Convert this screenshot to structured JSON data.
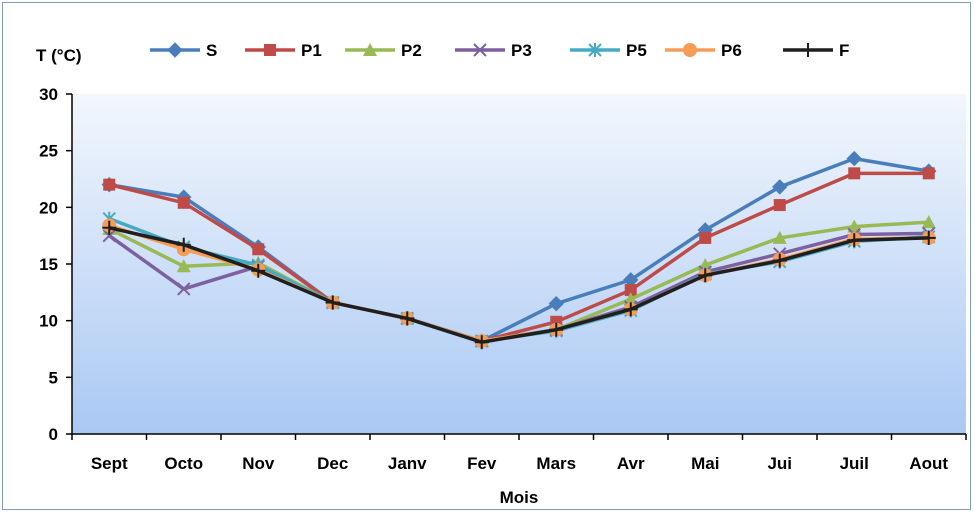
{
  "chart_data": {
    "type": "line",
    "title": "",
    "xlabel": "Mois",
    "ylabel": "T (°C)",
    "ylim": [
      0,
      30
    ],
    "yticks": [
      0,
      5,
      10,
      15,
      20,
      25,
      30
    ],
    "grid": false,
    "legend_position": "top",
    "categories": [
      "Sept",
      "Octo",
      "Nov",
      "Dec",
      "Janv",
      "Fev",
      "Mars",
      "Avr",
      "Mai",
      "Jui",
      "Juil",
      "Aout"
    ],
    "series": [
      {
        "name": "S",
        "color": "#4a7ebb",
        "marker": "diamond",
        "values": [
          22.0,
          20.9,
          16.5,
          11.6,
          10.2,
          8.2,
          11.5,
          13.6,
          18.0,
          21.8,
          24.3,
          23.2
        ]
      },
      {
        "name": "P1",
        "color": "#be4b48",
        "marker": "square",
        "values": [
          22.0,
          20.4,
          16.3,
          11.6,
          10.2,
          8.2,
          9.9,
          12.7,
          17.3,
          20.2,
          23.0,
          23.0
        ]
      },
      {
        "name": "P2",
        "color": "#98b954",
        "marker": "triangle",
        "values": [
          18.1,
          14.8,
          15.1,
          11.6,
          10.2,
          8.2,
          9.2,
          11.9,
          14.9,
          17.3,
          18.3,
          18.7
        ]
      },
      {
        "name": "P3",
        "color": "#7d60a0",
        "marker": "x",
        "values": [
          17.5,
          12.8,
          14.8,
          11.6,
          10.2,
          8.2,
          9.2,
          11.2,
          14.3,
          15.9,
          17.6,
          17.7
        ]
      },
      {
        "name": "P5",
        "color": "#46aac5",
        "marker": "asterisk",
        "values": [
          19.0,
          16.5,
          14.9,
          11.6,
          10.2,
          8.2,
          9.1,
          10.9,
          14.1,
          15.2,
          17.0,
          17.4
        ]
      },
      {
        "name": "P6",
        "color": "#f59d56",
        "marker": "circle",
        "values": [
          18.4,
          16.3,
          14.5,
          11.6,
          10.2,
          8.2,
          9.2,
          11.0,
          14.0,
          15.4,
          17.2,
          17.3
        ]
      },
      {
        "name": "F",
        "color": "#1f1f1f",
        "marker": "plus",
        "values": [
          18.2,
          16.7,
          14.4,
          11.6,
          10.2,
          8.1,
          9.2,
          11.0,
          14.0,
          15.3,
          17.1,
          17.3
        ]
      }
    ]
  }
}
